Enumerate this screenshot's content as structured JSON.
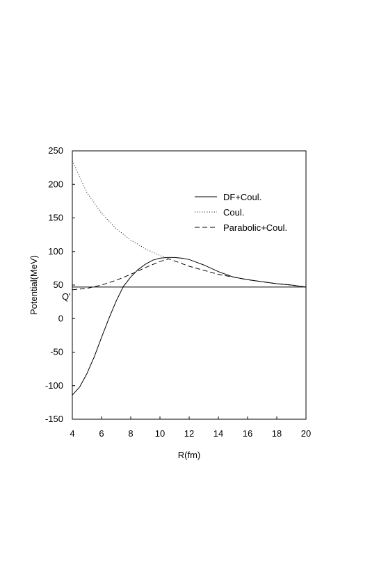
{
  "chart_data": {
    "type": "line",
    "xlabel": "R(fm)",
    "ylabel": "Potential(MeV)",
    "xlim": [
      4,
      20
    ],
    "ylim": [
      -150,
      250
    ],
    "xticks": [
      4,
      6,
      8,
      10,
      12,
      14,
      16,
      18,
      20
    ],
    "yticks": [
      -150,
      -100,
      -50,
      0,
      50,
      100,
      150,
      200,
      250
    ],
    "grid": false,
    "legend_position": "top-right",
    "annotations": [
      {
        "text": "Q'",
        "x": 4,
        "y": 43
      }
    ],
    "hline": {
      "y": 47
    },
    "series": [
      {
        "name": "DF+Coul.",
        "style": "solid",
        "x": [
          4,
          4.5,
          5,
          5.5,
          6,
          6.5,
          7,
          7.5,
          8,
          8.5,
          9,
          9.5,
          10,
          10.5,
          11,
          11.5,
          12,
          12.5,
          13,
          14,
          15,
          16,
          17,
          18,
          19,
          20
        ],
        "y": [
          -114,
          -102,
          -82,
          -57,
          -28,
          0,
          26,
          48,
          62,
          73,
          81,
          87,
          90,
          91,
          91,
          90,
          88,
          84,
          80,
          70,
          62,
          58,
          55,
          52,
          50,
          47
        ]
      },
      {
        "name": "Coul.",
        "style": "dotted",
        "x": [
          4,
          5,
          6,
          7,
          8,
          9,
          10,
          10.6
        ],
        "y": [
          235,
          188,
          157,
          134,
          117,
          104,
          94,
          89
        ]
      },
      {
        "name": "Parabolic+Coul.",
        "style": "dashed",
        "x": [
          4,
          5,
          6,
          7,
          8,
          9,
          10,
          10.6,
          11,
          12,
          13,
          14,
          15,
          16,
          17,
          18,
          19,
          20
        ],
        "y": [
          43,
          45,
          50,
          57,
          66,
          76,
          85,
          89,
          86,
          78,
          72,
          66,
          62,
          58,
          55,
          52,
          50,
          47
        ]
      }
    ]
  }
}
